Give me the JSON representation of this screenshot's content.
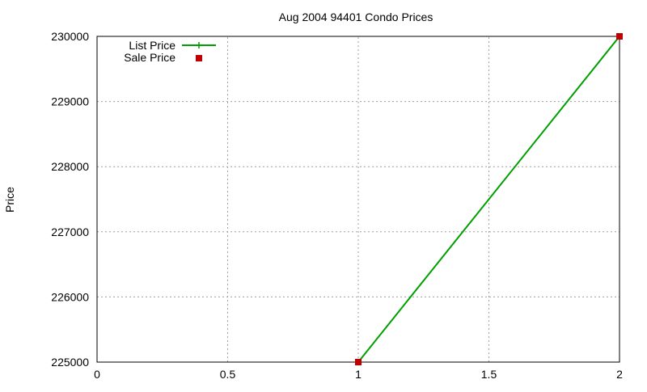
{
  "chart_data": {
    "type": "line",
    "title": "Aug 2004 94401 Condo Prices",
    "xlabel": "",
    "ylabel": "Price",
    "xlim": [
      0,
      2
    ],
    "ylim": [
      225000,
      230000
    ],
    "x_ticks": [
      "0",
      "0.5",
      "1",
      "1.5",
      "2"
    ],
    "y_ticks": [
      "225000",
      "226000",
      "227000",
      "228000",
      "229000",
      "230000"
    ],
    "grid": true,
    "legend_position": "top-left",
    "series": [
      {
        "name": "List Price",
        "style": "linespoints",
        "color": "#00a000",
        "x": [
          1,
          2
        ],
        "values": [
          225000,
          230000
        ]
      },
      {
        "name": "Sale Price",
        "style": "points",
        "color": "#c00000",
        "x": [
          1,
          2
        ],
        "values": [
          225000,
          230000
        ]
      }
    ]
  }
}
